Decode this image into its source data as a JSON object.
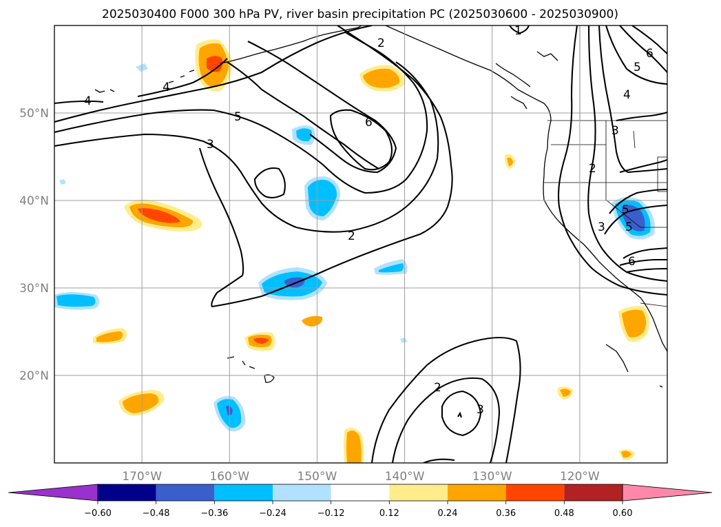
{
  "title": "2025030400 F000 300 hPa PV, river basin precipitation PC (2025030600 - 2025030900)",
  "map": {
    "lon_range": [
      -180,
      -110
    ],
    "lat_range": [
      10,
      60
    ],
    "lat_ticks": [
      {
        "value": 50,
        "label": "50°N"
      },
      {
        "value": 40,
        "label": "40°N"
      },
      {
        "value": 30,
        "label": "30°N"
      },
      {
        "value": 20,
        "label": "20°N"
      }
    ],
    "lon_ticks": [
      {
        "value": -170,
        "label": "170°W"
      },
      {
        "value": -160,
        "label": "160°W"
      },
      {
        "value": -150,
        "label": "150°W"
      },
      {
        "value": -140,
        "label": "140°W"
      },
      {
        "value": -130,
        "label": "130°W"
      },
      {
        "value": -120,
        "label": "120°W"
      }
    ],
    "gridlines": true,
    "pv_contour_labels": [
      "1",
      "2",
      "2",
      "2",
      "2",
      "3",
      "3",
      "3",
      "3",
      "4",
      "4",
      "4",
      "5",
      "5",
      "5",
      "5",
      "6",
      "6",
      "6"
    ]
  },
  "colorbar": {
    "orientation": "horizontal",
    "extend": "both",
    "ticks": [
      "−0.60",
      "−0.48",
      "−0.36",
      "−0.24",
      "−0.12",
      "0.12",
      "0.24",
      "0.36",
      "0.48",
      "0.60"
    ],
    "colors": [
      "#9932cc",
      "#00008b",
      "#3a5fcd",
      "#00bfff",
      "#b0e2ff",
      "#ffffff",
      "#ffec8b",
      "#ffa500",
      "#ff4500",
      "#b22222",
      "#ff88aa"
    ]
  }
}
